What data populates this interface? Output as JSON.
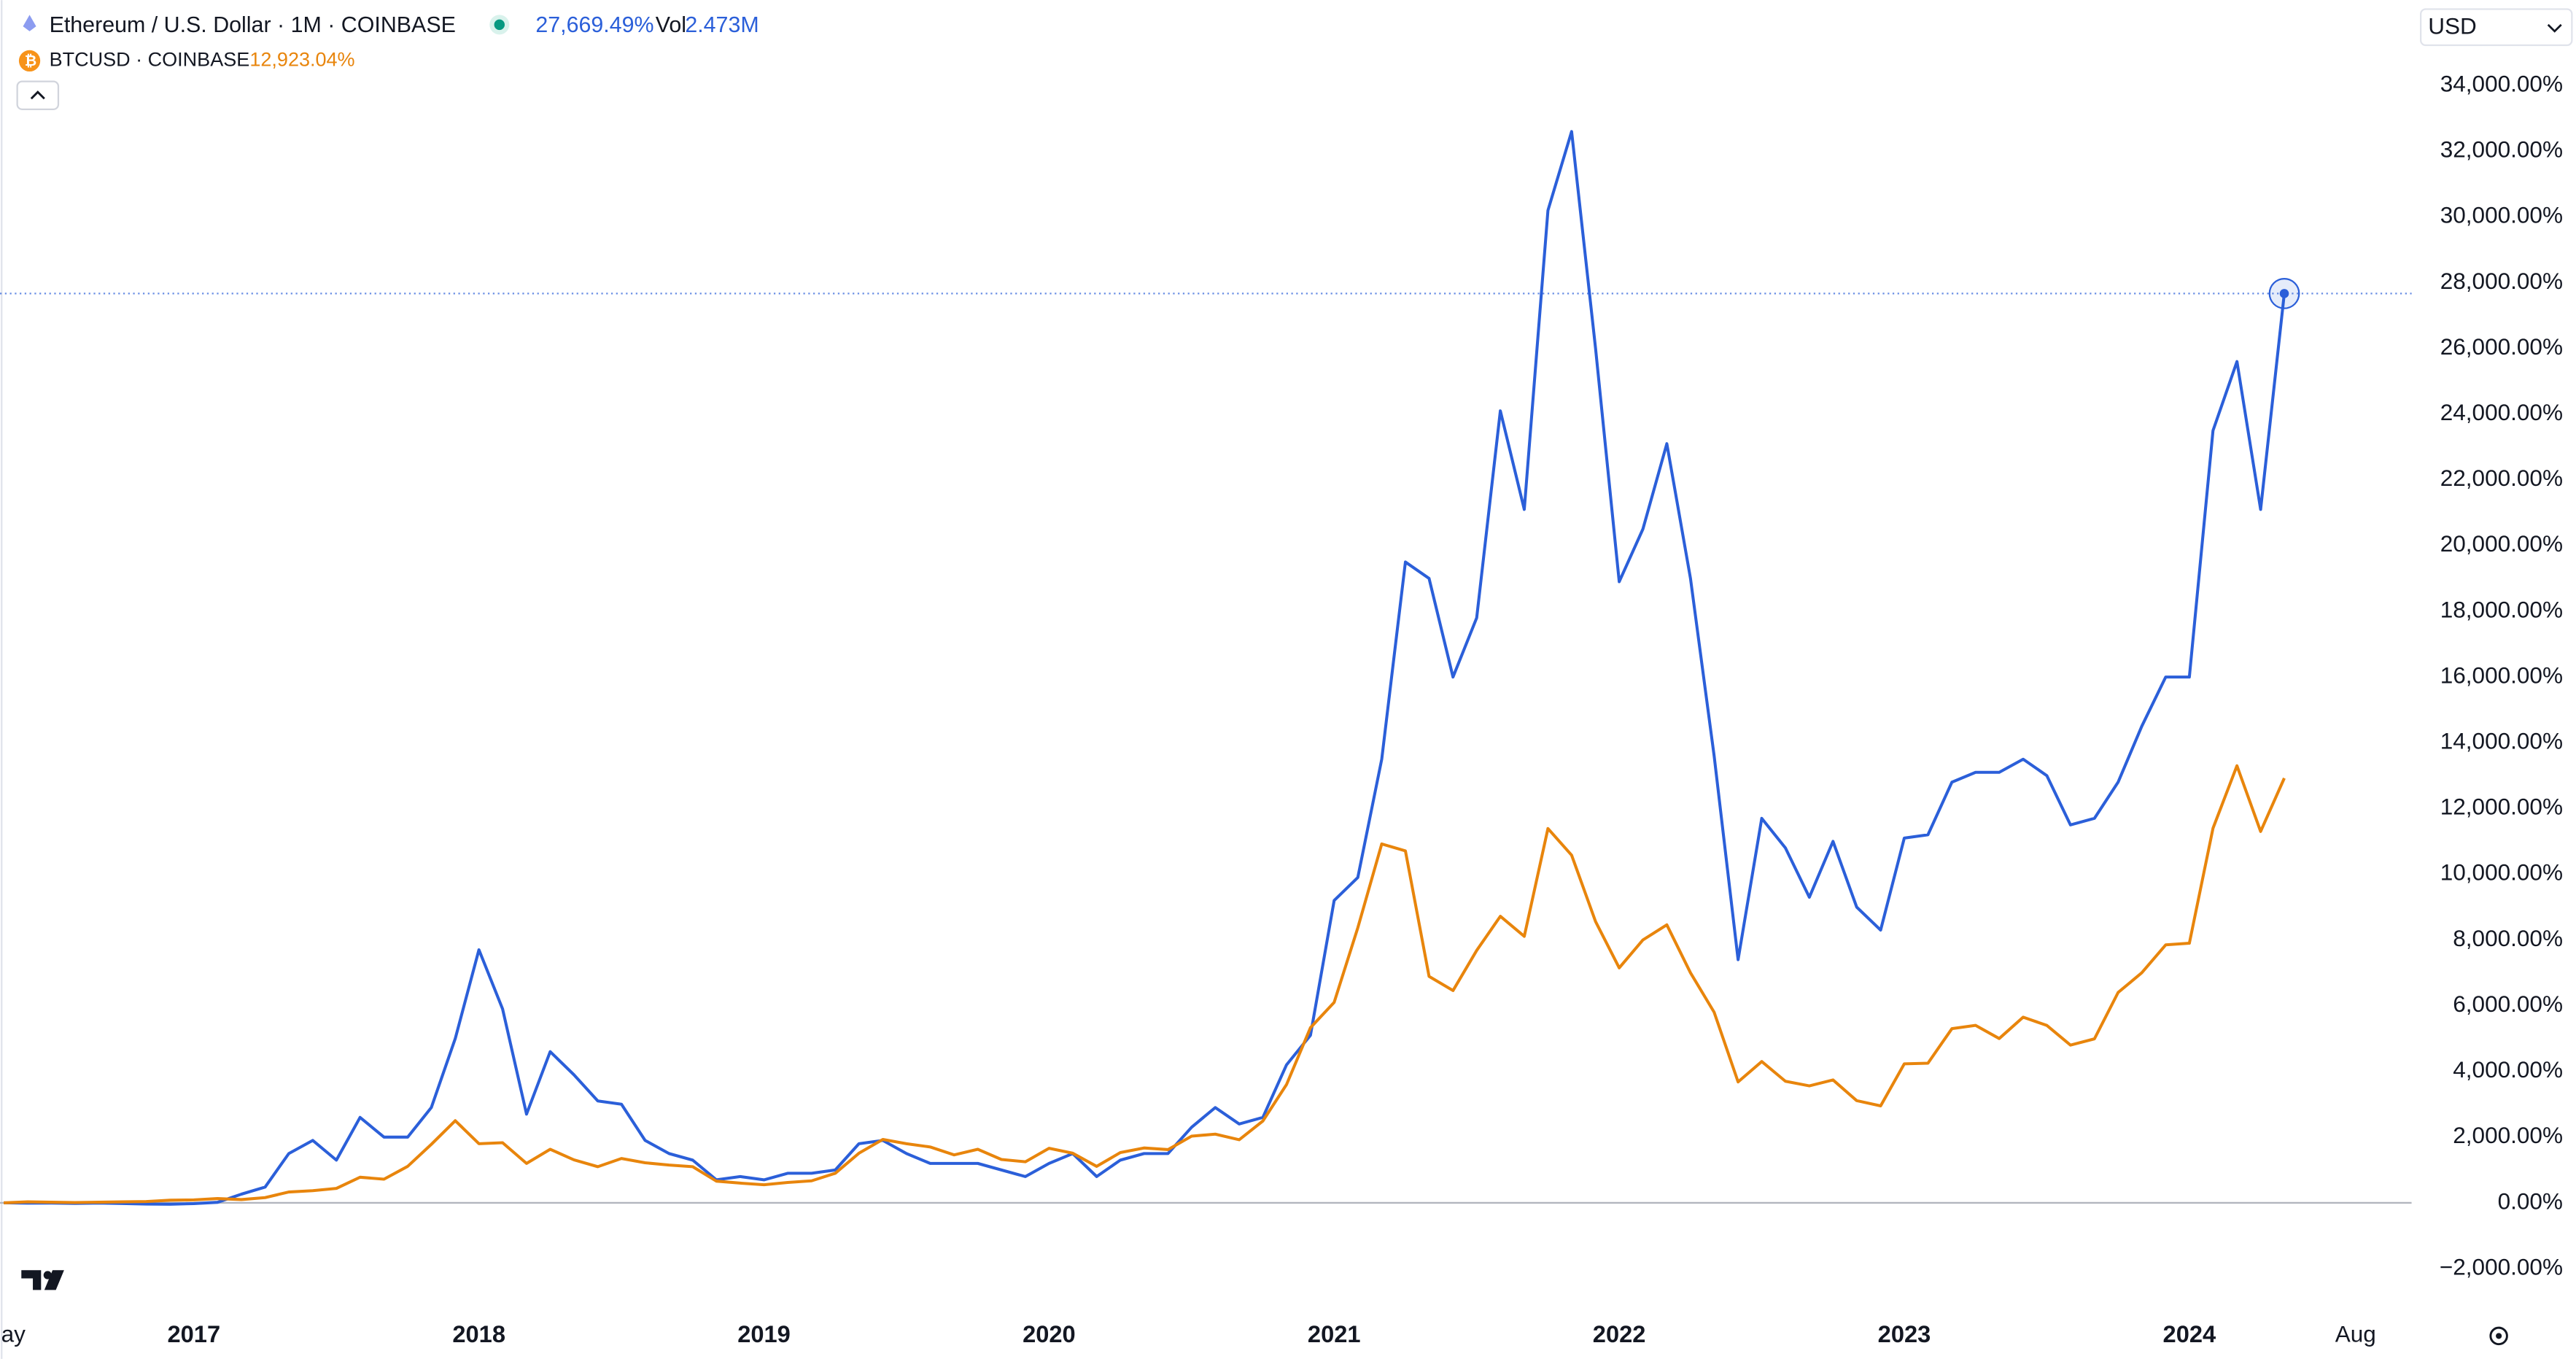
{
  "chart_data": {
    "type": "line",
    "header": {
      "title": "Ethereum / U.S. Dollar · 1M · COINBASE",
      "change": "27,669.49%",
      "vol_label": "Vol",
      "vol": "2.473M",
      "compare": "BTCUSD · COINBASE",
      "compare_change": "12,923.04%"
    },
    "currency": "USD",
    "grid": false,
    "x": [
      2016.333,
      2016.417,
      2016.5,
      2016.583,
      2016.667,
      2016.75,
      2016.833,
      2016.917,
      2017,
      2017.083,
      2017.167,
      2017.25,
      2017.333,
      2017.417,
      2017.5,
      2017.583,
      2017.667,
      2017.75,
      2017.833,
      2017.917,
      2018,
      2018.083,
      2018.167,
      2018.25,
      2018.333,
      2018.417,
      2018.5,
      2018.583,
      2018.667,
      2018.75,
      2018.833,
      2018.917,
      2019,
      2019.083,
      2019.167,
      2019.25,
      2019.333,
      2019.417,
      2019.5,
      2019.583,
      2019.667,
      2019.75,
      2019.833,
      2019.917,
      2020,
      2020.083,
      2020.167,
      2020.25,
      2020.333,
      2020.417,
      2020.5,
      2020.583,
      2020.667,
      2020.75,
      2020.833,
      2020.917,
      2021,
      2021.083,
      2021.167,
      2021.25,
      2021.333,
      2021.417,
      2021.5,
      2021.583,
      2021.667,
      2021.75,
      2021.833,
      2021.917,
      2022,
      2022.083,
      2022.167,
      2022.25,
      2022.333,
      2022.417,
      2022.5,
      2022.583,
      2022.667,
      2022.75,
      2022.833,
      2022.917,
      2023,
      2023.083,
      2023.167,
      2023.25,
      2023.333,
      2023.417,
      2023.5,
      2023.583,
      2023.667,
      2023.75,
      2023.833,
      2023.917,
      2024,
      2024.083,
      2024.167,
      2024.25,
      2024.333
    ],
    "series": [
      {
        "name": "Ethereum / U.S. Dollar",
        "color": "#2b5fd9",
        "values": [
          2,
          -10,
          -7,
          -17,
          -5,
          -20,
          -38,
          -42,
          -22,
          17,
          265,
          480,
          1500,
          1900,
          1300,
          2600,
          2000,
          2000,
          2900,
          5000,
          7700,
          5900,
          2700,
          4600,
          3900,
          3100,
          3000,
          1900,
          1500,
          1300,
          700,
          800,
          700,
          900,
          900,
          1000,
          1800,
          1900,
          1500,
          1200,
          1200,
          1200,
          1000,
          800,
          1200,
          1500,
          800,
          1300,
          1500,
          1500,
          2300,
          2900,
          2400,
          2600,
          4200,
          5100,
          9200,
          9900,
          13500,
          19500,
          19000,
          16000,
          17800,
          24100,
          21100,
          30200,
          32600,
          26000,
          18900,
          20500,
          23100,
          19000,
          13600,
          7400,
          11700,
          10800,
          9300,
          11000,
          9000,
          8300,
          11100,
          11200,
          12800,
          13100,
          13100,
          13500,
          13000,
          11500,
          11700,
          12800,
          14500,
          16000,
          16000,
          23500,
          25600,
          21100,
          27669.49
        ]
      },
      {
        "name": "BTCUSD",
        "color": "#e8850c",
        "values": [
          0,
          30,
          20,
          10,
          20,
          30,
          40,
          80,
          90,
          130,
          100,
          160,
          330,
          370,
          440,
          780,
          720,
          1110,
          1780,
          2500,
          1800,
          1830,
          1200,
          1630,
          1310,
          1100,
          1350,
          1220,
          1150,
          1100,
          660,
          600,
          550,
          620,
          670,
          900,
          1510,
          1930,
          1800,
          1700,
          1460,
          1630,
          1320,
          1250,
          1660,
          1510,
          1110,
          1530,
          1670,
          1620,
          2030,
          2090,
          1920,
          2490,
          3600,
          5330,
          6100,
          8370,
          10920,
          10710,
          6890,
          6460,
          7680,
          8720,
          8110,
          11390,
          10580,
          8560,
          7150,
          8000,
          8460,
          7000,
          5800,
          3680,
          4300,
          3700,
          3560,
          3740,
          3110,
          2950,
          4230,
          4250,
          5300,
          5400,
          5000,
          5650,
          5400,
          4800,
          4990,
          6400,
          7000,
          7850,
          7900,
          11400,
          13300,
          11300,
          12923.04
        ]
      }
    ],
    "xlim": [
      2016.32,
      2024.78
    ],
    "xticks": [
      {
        "value": 2016.333,
        "label": "May"
      },
      2017,
      2018,
      2019,
      2020,
      2021,
      2022,
      2023,
      2024,
      {
        "value": 2024.583,
        "label": "Aug"
      }
    ],
    "ylim": [
      -3400,
      36600
    ],
    "yticks": [
      {
        "value": 34000,
        "label": "34,000.00%"
      },
      {
        "value": 32000,
        "label": "32,000.00%"
      },
      {
        "value": 30000,
        "label": "30,000.00%"
      },
      {
        "value": 28000,
        "label": "28,000.00%"
      },
      {
        "value": 26000,
        "label": "26,000.00%"
      },
      {
        "value": 24000,
        "label": "24,000.00%"
      },
      {
        "value": 22000,
        "label": "22,000.00%"
      },
      {
        "value": 20000,
        "label": "20,000.00%"
      },
      {
        "value": 18000,
        "label": "18,000.00%"
      },
      {
        "value": 16000,
        "label": "16,000.00%"
      },
      {
        "value": 14000,
        "label": "14,000.00%"
      },
      {
        "value": 12000,
        "label": "12,000.00%"
      },
      {
        "value": 10000,
        "label": "10,000.00%"
      },
      {
        "value": 8000,
        "label": "8,000.00%"
      },
      {
        "value": 6000,
        "label": "6,000.00%"
      },
      {
        "value": 4000,
        "label": "4,000.00%"
      },
      {
        "value": 2000,
        "label": "2,000.00%"
      },
      {
        "value": 0,
        "label": "0.00%"
      },
      {
        "value": -2000,
        "label": "−2,000.00%"
      }
    ]
  }
}
